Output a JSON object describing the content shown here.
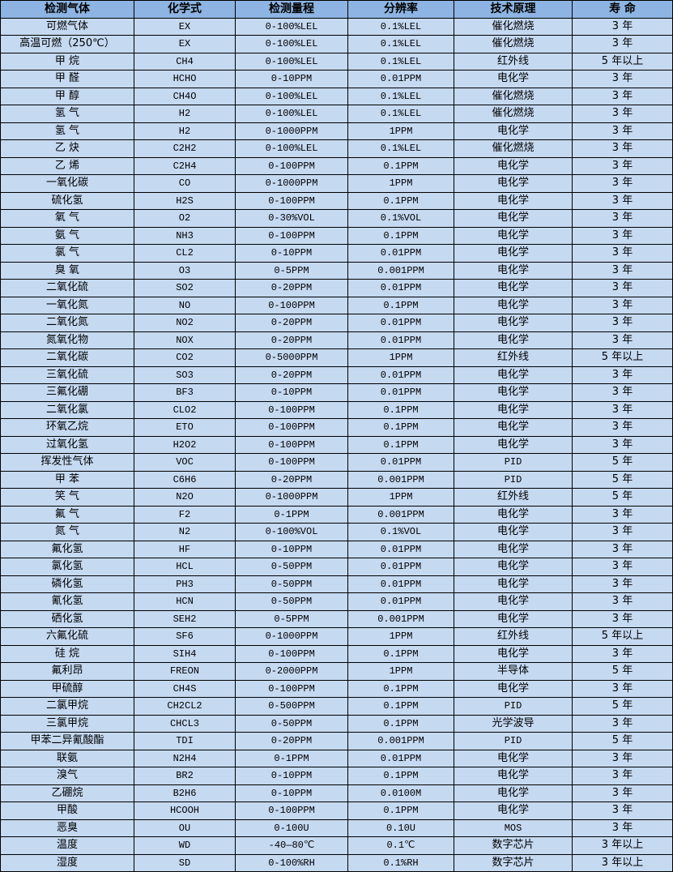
{
  "colors": {
    "header_bg": "#8db4e2",
    "row_bg": "#c5d9f1",
    "border": "#000000"
  },
  "headers": [
    "检测气体",
    "化学式",
    "检测量程",
    "分辨率",
    "技术原理",
    "寿 命"
  ],
  "rows": [
    [
      "可燃气体",
      "EX",
      "0-100%LEL",
      "0.1%LEL",
      "催化燃烧",
      "3 年"
    ],
    [
      "高温可燃（250℃）",
      "EX",
      "0-100%LEL",
      "0.1%LEL",
      "催化燃烧",
      "3 年"
    ],
    [
      "甲 烷",
      "CH4",
      "0-100%LEL",
      "0.1%LEL",
      "红外线",
      "5 年以上"
    ],
    [
      "甲 醛",
      "HCHO",
      "0-10PPM",
      "0.01PPM",
      "电化学",
      "3 年"
    ],
    [
      "甲 醇",
      "CH4O",
      "0-100%LEL",
      "0.1%LEL",
      "催化燃烧",
      "3 年"
    ],
    [
      "氢 气",
      "H2",
      "0-100%LEL",
      "0.1%LEL",
      "催化燃烧",
      "3 年"
    ],
    [
      "氢 气",
      "H2",
      "0-1000PPM",
      "1PPM",
      "电化学",
      "3 年"
    ],
    [
      "乙 炔",
      "C2H2",
      "0-100%LEL",
      "0.1%LEL",
      "催化燃烧",
      "3 年"
    ],
    [
      "乙 烯",
      "C2H4",
      "0-100PPM",
      "0.1PPM",
      "电化学",
      "3 年"
    ],
    [
      "一氧化碳",
      "CO",
      "0-1000PPM",
      "1PPM",
      "电化学",
      "3 年"
    ],
    [
      "硫化氢",
      "H2S",
      "0-100PPM",
      "0.1PPM",
      "电化学",
      "3 年"
    ],
    [
      "氧 气",
      "O2",
      "0-30%VOL",
      "0.1%VOL",
      "电化学",
      "3 年"
    ],
    [
      "氨 气",
      "NH3",
      "0-100PPM",
      "0.1PPM",
      "电化学",
      "3 年"
    ],
    [
      "氯 气",
      "CL2",
      "0-10PPM",
      "0.01PPM",
      "电化学",
      "3 年"
    ],
    [
      "臭 氧",
      "O3",
      "0-5PPM",
      "0.001PPM",
      "电化学",
      "3 年"
    ],
    [
      "二氧化硫",
      "SO2",
      "0-20PPM",
      "0.01PPM",
      "电化学",
      "3 年"
    ],
    [
      "一氧化氮",
      "NO",
      "0-100PPM",
      "0.1PPM",
      "电化学",
      "3 年"
    ],
    [
      "二氧化氮",
      "NO2",
      "0-20PPM",
      "0.01PPM",
      "电化学",
      "3 年"
    ],
    [
      "氮氧化物",
      "NOX",
      "0-20PPM",
      "0.01PPM",
      "电化学",
      "3 年"
    ],
    [
      "二氧化碳",
      "CO2",
      "0-5000PPM",
      "1PPM",
      "红外线",
      "5 年以上"
    ],
    [
      "三氧化硫",
      "SO3",
      "0-20PPM",
      "0.01PPM",
      "电化学",
      "3 年"
    ],
    [
      "三氟化硼",
      "BF3",
      "0-10PPM",
      "0.01PPM",
      "电化学",
      "3 年"
    ],
    [
      "二氧化氯",
      "CLO2",
      "0-100PPM",
      "0.1PPM",
      "电化学",
      "3 年"
    ],
    [
      "环氧乙烷",
      "ETO",
      "0-100PPM",
      "0.1PPM",
      "电化学",
      "3 年"
    ],
    [
      "过氧化氢",
      "H2O2",
      "0-100PPM",
      "0.1PPM",
      "电化学",
      "3 年"
    ],
    [
      "挥发性气体",
      "VOC",
      "0-100PPM",
      "0.01PPM",
      "PID",
      "5 年"
    ],
    [
      "甲 苯",
      "C6H6",
      "0-20PPM",
      "0.001PPM",
      "PID",
      "5 年"
    ],
    [
      "笑 气",
      "N2O",
      "0-1000PPM",
      "1PPM",
      "红外线",
      "5 年"
    ],
    [
      "氟 气",
      "F2",
      "0-1PPM",
      "0.001PPM",
      "电化学",
      "3 年"
    ],
    [
      "氮 气",
      "N2",
      "0-100%VOL",
      "0.1%VOL",
      "电化学",
      "3 年"
    ],
    [
      "氟化氢",
      "HF",
      "0-10PPM",
      "0.01PPM",
      "电化学",
      "3 年"
    ],
    [
      "氯化氢",
      "HCL",
      "0-50PPM",
      "0.01PPM",
      "电化学",
      "3 年"
    ],
    [
      "磷化氢",
      "PH3",
      "0-50PPM",
      "0.01PPM",
      "电化学",
      "3 年"
    ],
    [
      "氰化氢",
      "HCN",
      "0-50PPM",
      "0.01PPM",
      "电化学",
      "3 年"
    ],
    [
      "硒化氢",
      "SEH2",
      "0-5PPM",
      "0.001PPM",
      "电化学",
      "3 年"
    ],
    [
      "六氟化硫",
      "SF6",
      "0-1000PPM",
      "1PPM",
      "红外线",
      "5 年以上"
    ],
    [
      "硅 烷",
      "SIH4",
      "0-100PPM",
      "0.1PPM",
      "电化学",
      "3 年"
    ],
    [
      "氟利昂",
      "FREON",
      "0-2000PPM",
      "1PPM",
      "半导体",
      "5 年"
    ],
    [
      "甲硫醇",
      "CH4S",
      "0-100PPM",
      "0.1PPM",
      "电化学",
      "3 年"
    ],
    [
      "二氯甲烷",
      "CH2CL2",
      "0-500PPM",
      "0.1PPM",
      "PID",
      "5 年"
    ],
    [
      "三氯甲烷",
      "CHCL3",
      "0-50PPM",
      "0.1PPM",
      "光学波导",
      "3 年"
    ],
    [
      "甲苯二异氰酸酯",
      "TDI",
      "0-20PPM",
      "0.001PPM",
      "PID",
      "5 年"
    ],
    [
      "联氨",
      "N2H4",
      "0-1PPM",
      "0.01PPM",
      "电化学",
      "3 年"
    ],
    [
      "溴气",
      "BR2",
      "0-10PPM",
      "0.1PPM",
      "电化学",
      "3 年"
    ],
    [
      "乙硼烷",
      "B2H6",
      "0-10PPM",
      "0.0100M",
      "电化学",
      "3 年"
    ],
    [
      "甲酸",
      "HCOOH",
      "0-100PPM",
      "0.1PPM",
      "电化学",
      "3 年"
    ],
    [
      "恶臭",
      "OU",
      "0-100U",
      "0.10U",
      "MOS",
      "3 年"
    ],
    [
      "温度",
      "WD",
      "-40—80℃",
      "0.1℃",
      "数字芯片",
      "3 年以上"
    ],
    [
      "湿度",
      "SD",
      "0-100%RH",
      "0.1%RH",
      "数字芯片",
      "3 年以上"
    ]
  ]
}
